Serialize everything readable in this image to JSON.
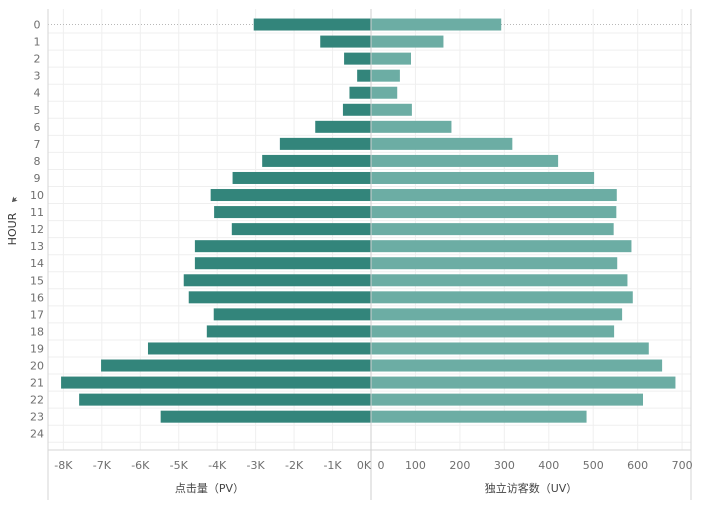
{
  "chart_data": {
    "type": "bar",
    "orientation": "horizontal",
    "layout": "diverging",
    "ylabel": "HOUR",
    "categories": [
      "0",
      "1",
      "2",
      "3",
      "4",
      "5",
      "6",
      "7",
      "8",
      "9",
      "10",
      "11",
      "12",
      "13",
      "14",
      "15",
      "16",
      "17",
      "18",
      "19",
      "20",
      "21",
      "22",
      "23",
      "24"
    ],
    "left_panel": {
      "xlabel": "点击量（PV）",
      "tick_values": [
        -8000,
        -7000,
        -6000,
        -5000,
        -4000,
        -3000,
        -2000,
        -1000,
        0
      ],
      "tick_labels": [
        "-8K",
        "-7K",
        "-6K",
        "-5K",
        "-4K",
        "-3K",
        "-2K",
        "-1K",
        "0K"
      ],
      "xlim": [
        -8400,
        0
      ],
      "color": "#33857b"
    },
    "right_panel": {
      "xlabel": "独立访客数（UV）",
      "tick_values": [
        0,
        100,
        200,
        300,
        400,
        500,
        600,
        700
      ],
      "tick_labels": [
        "0",
        "100",
        "200",
        "300",
        "400",
        "500",
        "600",
        "700"
      ],
      "xlim": [
        0,
        720
      ],
      "color": "#6cada4"
    },
    "series": [
      {
        "name": "点击量（PV）",
        "values": [
          -3050,
          -1320,
          -700,
          -360,
          -560,
          -730,
          -1450,
          -2370,
          -2830,
          -3600,
          -4170,
          -4080,
          -3620,
          -4580,
          -4580,
          -4870,
          -4740,
          -4090,
          -4270,
          -5800,
          -7020,
          -8060,
          -7590,
          -5470,
          null
        ]
      },
      {
        "name": "独立访客数（UV）",
        "values": [
          293,
          163,
          90,
          65,
          59,
          92,
          181,
          318,
          421,
          502,
          553,
          552,
          546,
          586,
          554,
          577,
          589,
          565,
          547,
          625,
          655,
          685,
          612,
          485,
          null
        ]
      }
    ],
    "grid": true
  }
}
